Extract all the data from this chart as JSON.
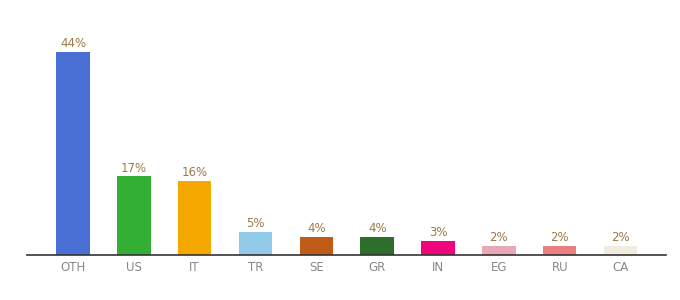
{
  "categories": [
    "OTH",
    "US",
    "IT",
    "TR",
    "SE",
    "GR",
    "IN",
    "EG",
    "RU",
    "CA"
  ],
  "values": [
    44,
    17,
    16,
    5,
    4,
    4,
    3,
    2,
    2,
    2
  ],
  "bar_colors": [
    "#4a6fd4",
    "#33b033",
    "#f5a800",
    "#91cae8",
    "#c05c18",
    "#2d6e2d",
    "#f0057a",
    "#e8a8b8",
    "#e88080",
    "#f0ede0"
  ],
  "labels": [
    "44%",
    "17%",
    "16%",
    "5%",
    "4%",
    "4%",
    "3%",
    "2%",
    "2%",
    "2%"
  ],
  "label_color": "#a07848",
  "background_color": "#ffffff",
  "ylim": [
    0,
    50
  ],
  "label_fontsize": 8.5,
  "tick_fontsize": 8.5,
  "bar_width": 0.55
}
